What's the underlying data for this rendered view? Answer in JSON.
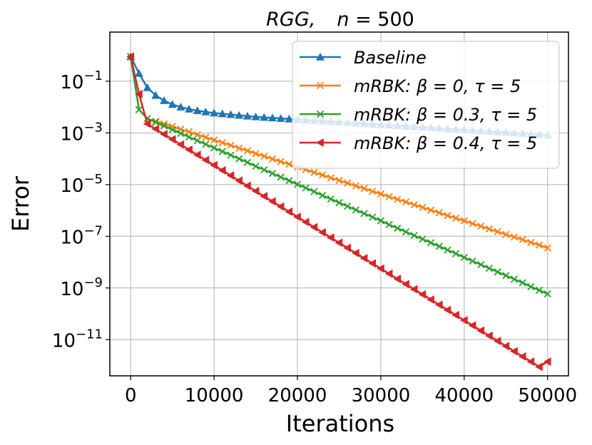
{
  "chart_data": {
    "type": "line",
    "title": "RGG,    n = 500",
    "xlabel": "Iterations",
    "ylabel": "Error",
    "yscale": "log",
    "xlim": [
      -2500,
      52500
    ],
    "ylim_log10": [
      -12.4,
      0.9
    ],
    "x_ticks": [
      0,
      10000,
      20000,
      30000,
      40000,
      50000
    ],
    "x_tick_labels": [
      "0",
      "10000",
      "20000",
      "30000",
      "40000",
      "50000"
    ],
    "y_ticks_exp": [
      -1,
      -3,
      -5,
      -7,
      -9,
      -11
    ],
    "y_tick_base": "10",
    "y_tick_exponents": [
      "−1",
      "−3",
      "−5",
      "−7",
      "−9",
      "−11"
    ],
    "grid": true,
    "legend_position": "top-right",
    "x": [
      0,
      1000,
      2000,
      3000,
      4000,
      5000,
      6000,
      7000,
      8000,
      9000,
      10000,
      11000,
      12000,
      13000,
      14000,
      15000,
      16000,
      17000,
      18000,
      19000,
      20000,
      21000,
      22000,
      23000,
      24000,
      25000,
      26000,
      27000,
      28000,
      29000,
      30000,
      31000,
      32000,
      33000,
      34000,
      35000,
      36000,
      37000,
      38000,
      39000,
      40000,
      41000,
      42000,
      43000,
      44000,
      45000,
      46000,
      47000,
      48000,
      49000,
      50000
    ],
    "series": [
      {
        "name": "Baseline",
        "color": "#1f77b4",
        "marker": "triangle-up",
        "log10_values": [
          -0.05,
          -0.7,
          -1.25,
          -1.55,
          -1.75,
          -1.9,
          -2.0,
          -2.08,
          -2.14,
          -2.19,
          -2.23,
          -2.26,
          -2.29,
          -2.32,
          -2.35,
          -2.38,
          -2.4,
          -2.42,
          -2.44,
          -2.46,
          -2.48,
          -2.5,
          -2.52,
          -2.54,
          -2.56,
          -2.58,
          -2.6,
          -2.62,
          -2.64,
          -2.66,
          -2.68,
          -2.7,
          -2.72,
          -2.74,
          -2.76,
          -2.78,
          -2.8,
          -2.82,
          -2.84,
          -2.86,
          -2.88,
          -2.9,
          -2.92,
          -2.94,
          -2.96,
          -2.98,
          -3.0,
          -3.02,
          -3.04,
          -3.06,
          -3.08
        ]
      },
      {
        "name": "mRBK: β = 0, τ = 5",
        "color": "#ff7f0e",
        "marker": "x",
        "log10_values": [
          -0.05,
          -2.1,
          -2.45,
          -2.55,
          -2.65,
          -2.75,
          -2.86,
          -2.96,
          -3.07,
          -3.17,
          -3.28,
          -3.38,
          -3.48,
          -3.59,
          -3.69,
          -3.8,
          -3.9,
          -4.01,
          -4.11,
          -4.21,
          -4.32,
          -4.42,
          -4.53,
          -4.63,
          -4.74,
          -4.84,
          -4.94,
          -5.05,
          -5.15,
          -5.26,
          -5.36,
          -5.47,
          -5.57,
          -5.67,
          -5.78,
          -5.88,
          -5.99,
          -6.09,
          -6.2,
          -6.3,
          -6.4,
          -6.51,
          -6.61,
          -6.72,
          -6.82,
          -6.93,
          -7.03,
          -7.13,
          -7.24,
          -7.34,
          -7.45
        ]
      },
      {
        "name": "mRBK: β = 0.3, τ = 5",
        "color": "#2ca02c",
        "marker": "x",
        "log10_values": [
          -0.05,
          -2.1,
          -2.45,
          -2.59,
          -2.73,
          -2.87,
          -3.02,
          -3.16,
          -3.3,
          -3.44,
          -3.58,
          -3.72,
          -3.86,
          -4.0,
          -4.14,
          -4.29,
          -4.43,
          -4.57,
          -4.71,
          -4.85,
          -4.99,
          -5.13,
          -5.27,
          -5.42,
          -5.56,
          -5.7,
          -5.84,
          -5.98,
          -6.12,
          -6.26,
          -6.4,
          -6.55,
          -6.69,
          -6.83,
          -6.97,
          -7.11,
          -7.25,
          -7.39,
          -7.53,
          -7.67,
          -7.82,
          -7.96,
          -8.1,
          -8.24,
          -8.38,
          -8.52,
          -8.66,
          -8.8,
          -8.95,
          -9.09,
          -9.23
        ]
      },
      {
        "name": "mRBK: β = 0.4, τ = 5",
        "color": "#d62728",
        "marker": "triangle-left",
        "log10_values": [
          -0.05,
          -1.5,
          -2.65,
          -2.85,
          -3.05,
          -3.25,
          -3.45,
          -3.65,
          -3.85,
          -4.05,
          -4.25,
          -4.45,
          -4.65,
          -4.85,
          -5.05,
          -5.25,
          -5.45,
          -5.65,
          -5.85,
          -6.05,
          -6.25,
          -6.45,
          -6.65,
          -6.85,
          -7.05,
          -7.25,
          -7.45,
          -7.65,
          -7.85,
          -8.05,
          -8.25,
          -8.45,
          -8.65,
          -8.85,
          -9.05,
          -9.25,
          -9.45,
          -9.65,
          -9.85,
          -10.05,
          -10.25,
          -10.45,
          -10.65,
          -10.85,
          -11.05,
          -11.25,
          -11.45,
          -11.65,
          -11.85,
          -12.05,
          -11.85
        ]
      }
    ]
  }
}
